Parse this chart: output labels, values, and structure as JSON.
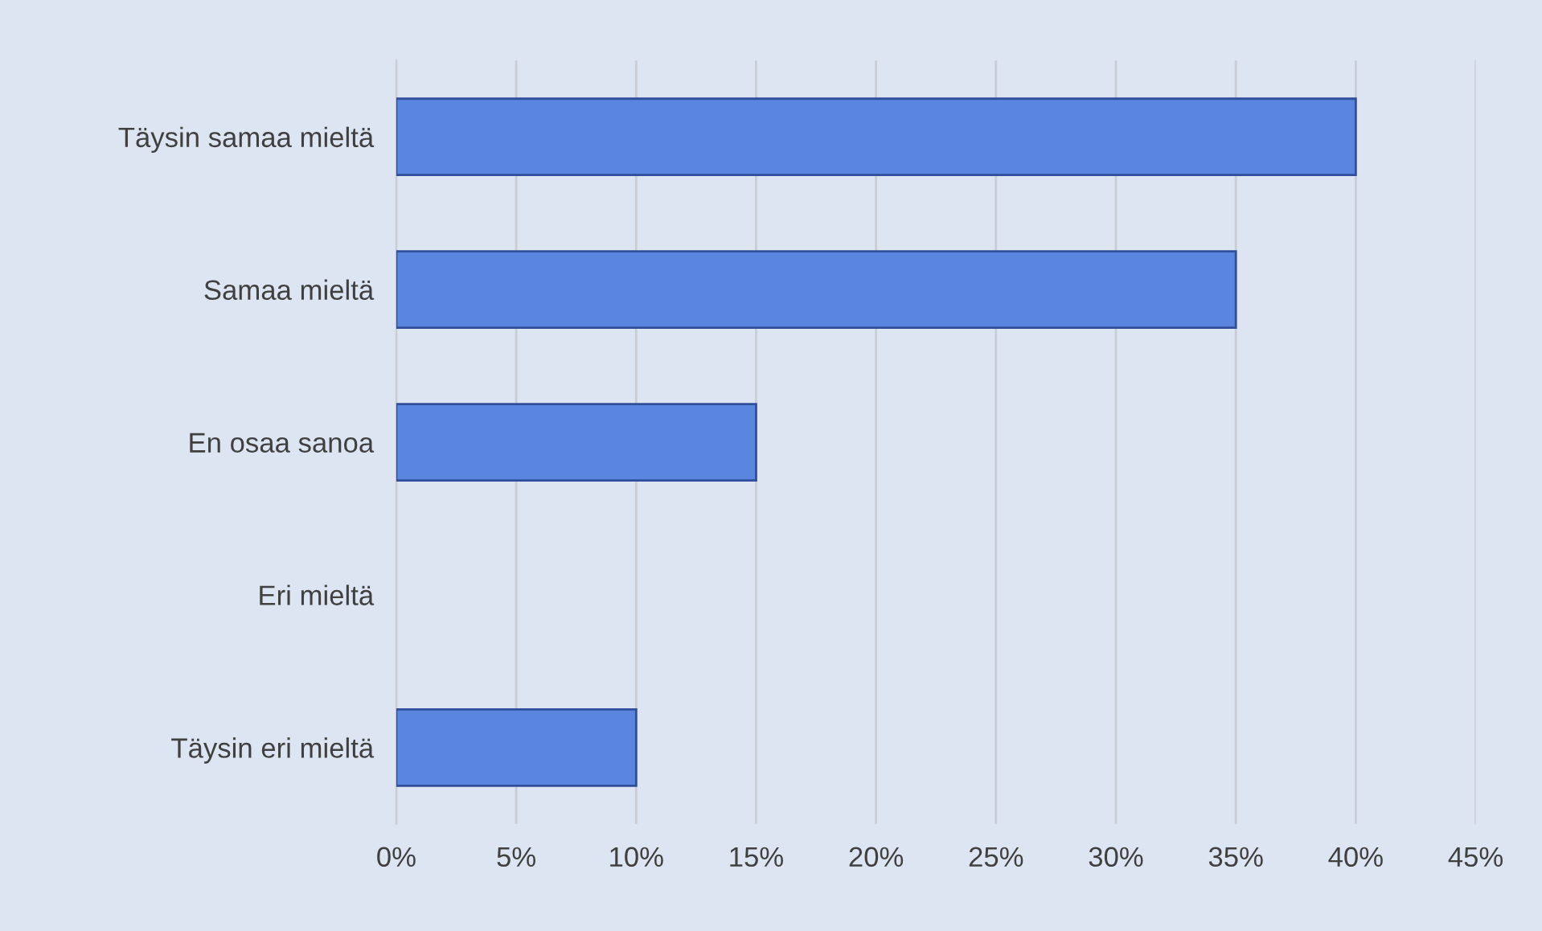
{
  "chart_data": {
    "type": "bar",
    "orientation": "horizontal",
    "categories": [
      "Täysin samaa mieltä",
      "Samaa mieltä",
      "En osaa sanoa",
      "Eri mieltä",
      "Täysin eri mieltä"
    ],
    "values": [
      40,
      35,
      15,
      0,
      10
    ],
    "color": "#5b86e0",
    "xlim": [
      0,
      45
    ],
    "xticks": [
      {
        "value": 0,
        "label": "0%"
      },
      {
        "value": 5,
        "label": "5%"
      },
      {
        "value": 10,
        "label": "10%"
      },
      {
        "value": 15,
        "label": "15%"
      },
      {
        "value": 20,
        "label": "20%"
      },
      {
        "value": 25,
        "label": "25%"
      },
      {
        "value": 30,
        "label": "30%"
      },
      {
        "value": 35,
        "label": "35%"
      },
      {
        "value": 40,
        "label": "40%"
      },
      {
        "value": 45,
        "label": "45%"
      }
    ],
    "grid": "x",
    "legend": false
  }
}
